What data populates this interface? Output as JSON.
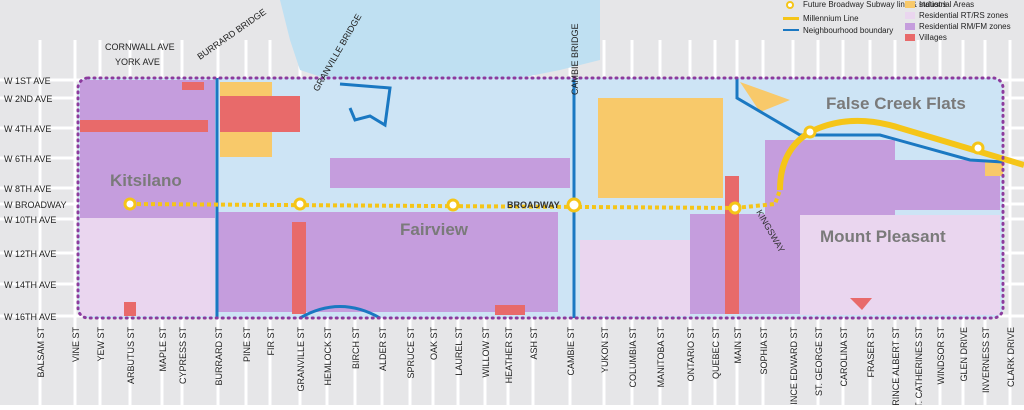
{
  "labels": {
    "cornwall": "CORNWALL AVE",
    "york": "YORK AVE",
    "burrard_bridge": "BURRARD BRIDGE",
    "granville_bridge": "GRANVILLE BRIDGE",
    "cambie_bridge": "CAMBIE BRIDGE",
    "broadway": "BROADWAY",
    "kingsway": "KINGSWAY"
  },
  "areas": [
    "Kitsilano",
    "Fairview",
    "Mount Pleasant",
    "False Creek Flats"
  ],
  "avenues": [
    "W 1ST AVE",
    "W 2ND AVE",
    "W 4TH AVE",
    "W 6TH AVE",
    "W 8TH AVE",
    "W BROADWAY",
    "W 10TH AVE",
    "W 12TH AVE",
    "W 14TH AVE",
    "W 16TH AVE"
  ],
  "streets": [
    "BALSAM ST",
    "VINE ST",
    "YEW ST",
    "ARBUTUS ST",
    "MAPLE ST",
    "CYPRESS ST",
    "BURRARD ST",
    "PINE ST",
    "FIR ST",
    "GRANVILLE ST",
    "HEMLOCK ST",
    "BIRCH ST",
    "ALDER ST",
    "SPRUCE ST",
    "OAK ST",
    "LAUREL ST",
    "WILLOW ST",
    "HEATHER ST",
    "ASH ST",
    "CAMBIE ST",
    "YUKON ST",
    "COLUMBIA ST",
    "MANITOBA ST",
    "ONTARIO ST",
    "QUEBEC ST",
    "MAIN ST",
    "SOPHIA ST",
    "PRINCE EDWARD ST",
    "ST. GEORGE ST",
    "CAROLINA ST",
    "FRASER ST",
    "PRINCE ALBERT ST",
    "ST. CATHERINES ST",
    "WINDSOR ST",
    "GLEN DRIVE",
    "INVERNESS ST",
    "CLARK DRIVE"
  ],
  "legend": [
    "Future Broadway Subway line & stations",
    "Millennium Line",
    "Neighbourhood boundary",
    "Industrial Areas",
    "Residential RT/RS zones",
    "Residential RM/FM zones",
    "Villages"
  ]
}
